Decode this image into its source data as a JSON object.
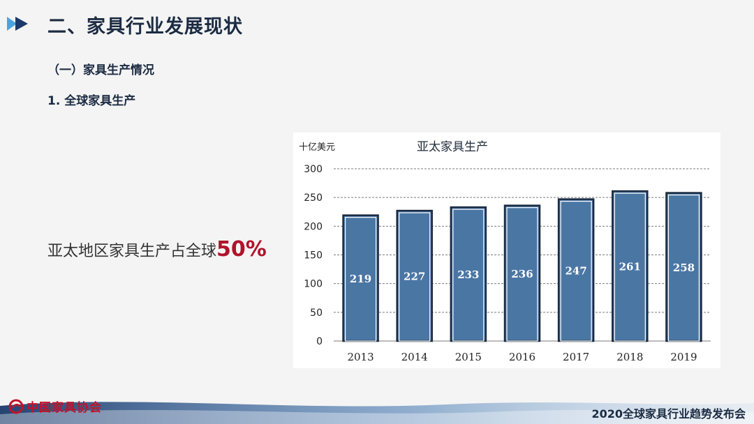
{
  "header": {
    "title": "二、家具行业发展现状",
    "section": "（一）家具生产情况",
    "subsection": "1. 全球家具生产"
  },
  "statement": {
    "text": "亚太地区家具生产占全球",
    "highlight": "50%"
  },
  "colors": {
    "bar": "#4a76a4",
    "bar_outline": "#1b2b42",
    "highlight": "#b0132b",
    "arrow_dark": "#1b3a6b",
    "arrow_light": "#4aa3df"
  },
  "chart_data": {
    "type": "bar",
    "title": "亚太家具生产",
    "unit_label": "十亿美元",
    "categories": [
      "2013",
      "2014",
      "2015",
      "2016",
      "2017",
      "2018",
      "2019"
    ],
    "values": [
      219,
      227,
      233,
      236,
      247,
      261,
      258
    ],
    "data_labels": [
      "219",
      "227",
      "233",
      "236",
      "247",
      "261",
      "258"
    ],
    "ylim": [
      0,
      300
    ],
    "yticks": [
      "0",
      "50",
      "100",
      "150",
      "200",
      "250",
      "300"
    ],
    "grid": true,
    "legend": "none"
  },
  "footer": {
    "logo_text": "中国家具协会",
    "logo_icon": "association-logo-icon",
    "event": "2020全球家具行业趋势发布会"
  }
}
